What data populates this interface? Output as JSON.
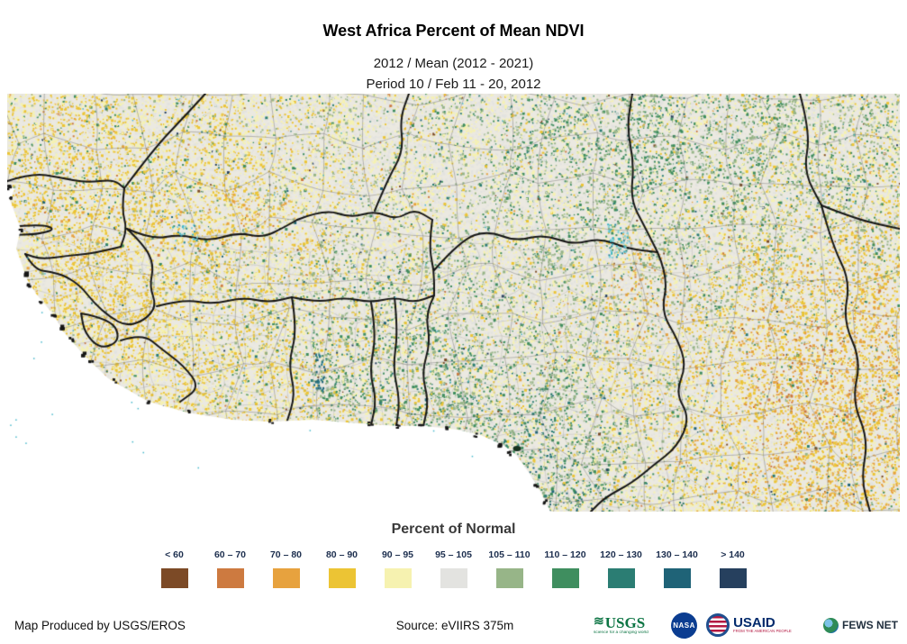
{
  "header": {
    "title": "West Africa Percent of Mean NDVI",
    "subtitle_line1": "2012 / Mean (2012 - 2021)",
    "subtitle_line2": "Period 10 / Feb 11 - 20, 2012"
  },
  "legend": {
    "title": "Percent of Normal",
    "classes": [
      {
        "label": "< 60",
        "color": "#7c4a26"
      },
      {
        "label": "60 – 70",
        "color": "#cd7a40"
      },
      {
        "label": "70 – 80",
        "color": "#e7a23e"
      },
      {
        "label": "80 – 90",
        "color": "#ecc434"
      },
      {
        "label": "90 – 95",
        "color": "#f6f2b0"
      },
      {
        "label": "95 – 105",
        "color": "#e3e3e0"
      },
      {
        "label": "105 – 110",
        "color": "#97b588"
      },
      {
        "label": "110 – 120",
        "color": "#3f8e5f"
      },
      {
        "label": "120 – 130",
        "color": "#2b7d73"
      },
      {
        "label": "130 – 140",
        "color": "#1f6377"
      },
      {
        "label": "> 140",
        "color": "#26405e"
      }
    ]
  },
  "footer": {
    "produced_by": "Map Produced by USGS/EROS",
    "source": "Source: eVIIRS 375m",
    "logos": {
      "usgs": {
        "name": "USGS",
        "tagline": "science for a changing world"
      },
      "nasa": {
        "name": "NASA"
      },
      "usaid": {
        "name": "USAID",
        "tagline": "FROM THE AMERICAN PEOPLE"
      },
      "fewsnet": {
        "name": "FEWS NET"
      }
    }
  }
}
